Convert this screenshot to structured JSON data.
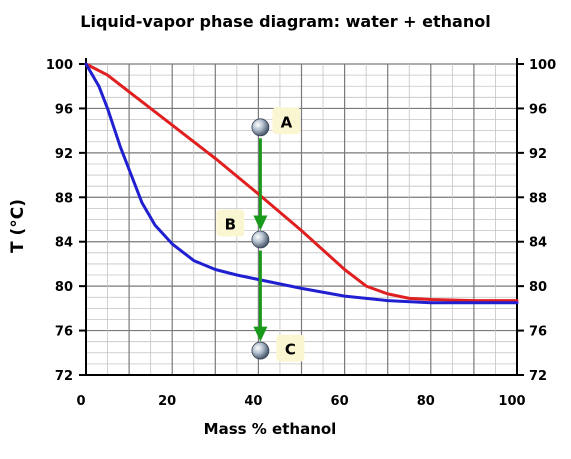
{
  "chart_data": {
    "type": "line",
    "title": "Liquid-vapor phase diagram: water + ethanol",
    "xlabel": "Mass % ethanol",
    "ylabel": "T (°C)",
    "xlim": [
      0,
      100
    ],
    "ylim": [
      72,
      100
    ],
    "x_ticks": [
      0,
      20,
      40,
      60,
      80,
      100
    ],
    "y_ticks": [
      72,
      76,
      80,
      84,
      88,
      92,
      96,
      100
    ],
    "grid": true,
    "series": [
      {
        "color": "#e02020",
        "x": [
          0,
          5,
          10,
          20,
          30,
          40,
          50,
          60,
          65,
          70,
          75,
          80,
          90,
          100
        ],
        "y": [
          100,
          99,
          97.5,
          94.5,
          91.5,
          88.3,
          85,
          81.5,
          80,
          79.3,
          78.9,
          78.8,
          78.7,
          78.7
        ]
      },
      {
        "color": "#2020d0",
        "x": [
          0,
          3,
          5,
          8,
          10,
          13,
          16,
          20,
          25,
          30,
          35,
          40,
          50,
          60,
          70,
          80,
          90,
          100
        ],
        "y": [
          100,
          98,
          96,
          92.5,
          90.5,
          87.5,
          85.5,
          83.8,
          82.3,
          81.5,
          81,
          80.6,
          79.8,
          79.1,
          78.7,
          78.5,
          78.5,
          78.5
        ]
      }
    ],
    "points": [
      {
        "label": "A",
        "x": 40,
        "y": 94.3
      },
      {
        "label": "B",
        "x": 40,
        "y": 84.2
      },
      {
        "label": "C",
        "x": 40,
        "y": 74.2
      }
    ],
    "arrow_color": "#1a9a1a"
  }
}
